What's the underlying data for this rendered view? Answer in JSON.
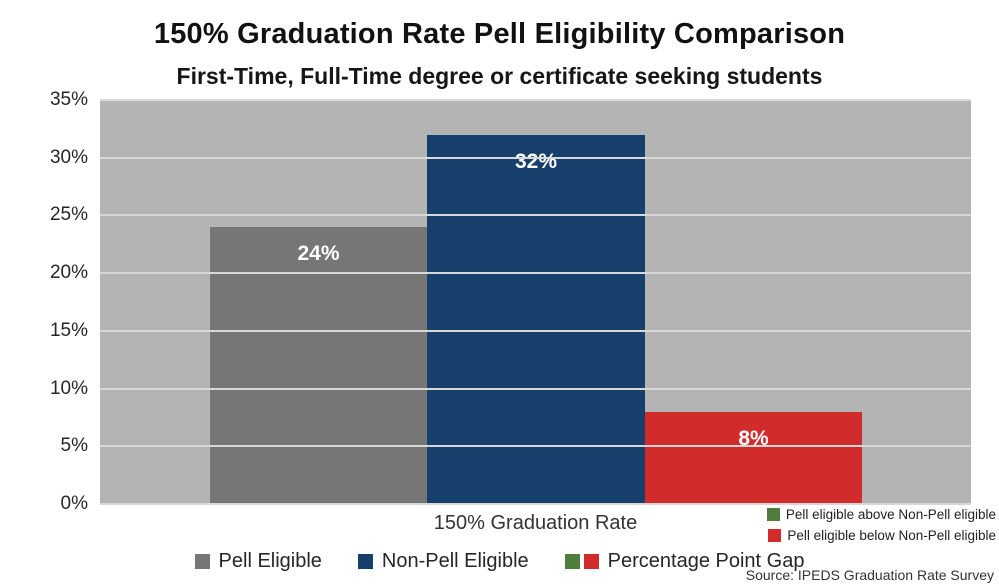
{
  "title": "150% Graduation Rate Pell Eligibility Comparison",
  "subtitle": "First-Time, Full-Time degree or certificate seeking students",
  "chart_data": {
    "type": "bar",
    "categories": [
      "150% Graduation Rate"
    ],
    "series": [
      {
        "name": "Pell Eligible",
        "values": [
          24
        ],
        "label": "24%",
        "color": "#767676"
      },
      {
        "name": "Non-Pell Eligible",
        "values": [
          32
        ],
        "label": "32%",
        "color": "#16406B"
      },
      {
        "name": "Percentage Point Gap",
        "values": [
          8
        ],
        "label": "8%",
        "color": "#D22B2B"
      }
    ],
    "xlabel": "150% Graduation Rate",
    "ylabel": "",
    "ylim": [
      0,
      35
    ],
    "ytick_step": 5,
    "yticks": [
      "0%",
      "5%",
      "10%",
      "15%",
      "20%",
      "25%",
      "30%",
      "35%"
    ],
    "grid": true,
    "legend_position": "bottom",
    "plot_background": "#B4B4B4",
    "gridline_color": "#D8D8D8"
  },
  "legend": {
    "items": [
      {
        "label": "Pell Eligible",
        "swatches": [
          "#767676"
        ]
      },
      {
        "label": "Non-Pell Eligible",
        "swatches": [
          "#16406B"
        ]
      },
      {
        "label": "Percentage Point Gap",
        "swatches": [
          "#4F7D3D",
          "#D22B2B"
        ]
      }
    ]
  },
  "side_legend": {
    "items": [
      {
        "label": "Pell eligible above Non-Pell eligible",
        "color": "#4F7D3D"
      },
      {
        "label": "Pell eligible below Non-Pell eligible",
        "color": "#D22B2B"
      }
    ]
  },
  "source": "Source: IPEDS Graduation Rate Survey"
}
